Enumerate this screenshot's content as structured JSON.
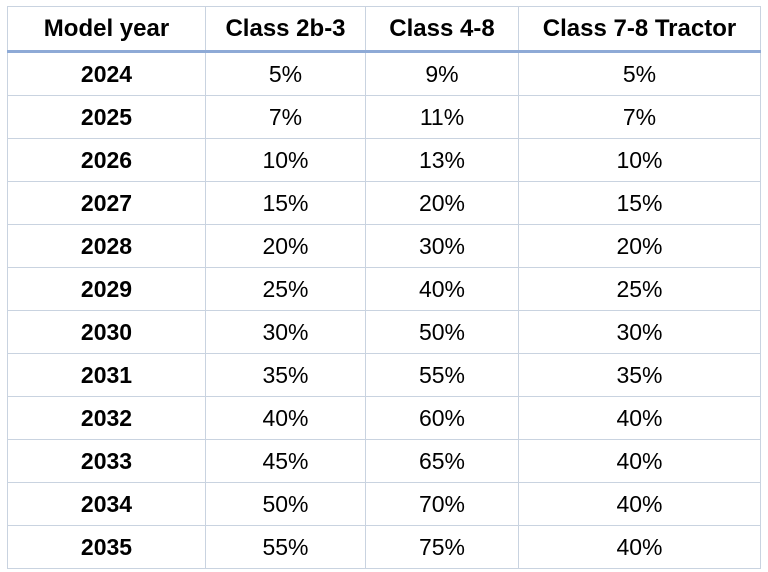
{
  "chart_data": {
    "type": "table",
    "columns": [
      "Model year",
      "Class 2b-3",
      "Class 4-8",
      "Class 7-8 Tractor"
    ],
    "rows": [
      [
        "2024",
        "5%",
        "9%",
        "5%"
      ],
      [
        "2025",
        "7%",
        "11%",
        "7%"
      ],
      [
        "2026",
        "10%",
        "13%",
        "10%"
      ],
      [
        "2027",
        "15%",
        "20%",
        "15%"
      ],
      [
        "2028",
        "20%",
        "30%",
        "20%"
      ],
      [
        "2029",
        "25%",
        "40%",
        "25%"
      ],
      [
        "2030",
        "30%",
        "50%",
        "30%"
      ],
      [
        "2031",
        "35%",
        "55%",
        "35%"
      ],
      [
        "2032",
        "40%",
        "60%",
        "40%"
      ],
      [
        "2033",
        "45%",
        "65%",
        "40%"
      ],
      [
        "2034",
        "50%",
        "70%",
        "40%"
      ],
      [
        "2035",
        "55%",
        "75%",
        "40%"
      ]
    ],
    "colors": {
      "grid_line": "#c9d3e0",
      "header_rule": "#8eaad6"
    }
  }
}
